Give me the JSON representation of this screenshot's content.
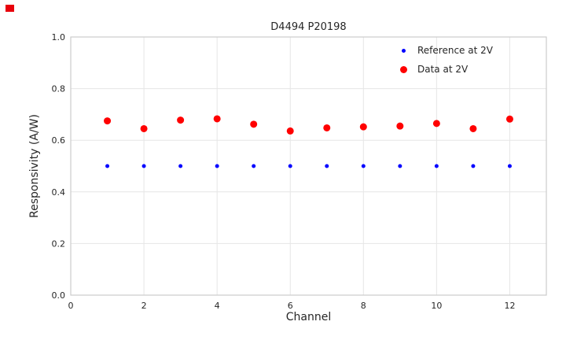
{
  "corner_marker_color": "#e8000b",
  "chart_data": {
    "type": "scatter",
    "title": "D4494 P20198",
    "xlabel": "Channel",
    "ylabel": "Responsivity (A/W)",
    "xlim": [
      0,
      13
    ],
    "ylim": [
      0,
      1
    ],
    "grid": true,
    "grid_color": "#e6e6e6",
    "border_color": "#cccccc",
    "legend_position": "upper-right",
    "xticks": {
      "values": [
        0,
        2,
        4,
        6,
        8,
        10,
        12
      ],
      "labels": [
        "0",
        "2",
        "4",
        "6",
        "8",
        "10",
        "12"
      ]
    },
    "yticks": {
      "values": [
        0,
        0.2,
        0.4,
        0.6,
        0.8,
        1.0
      ],
      "labels": [
        "0.0",
        "0.2",
        "0.4",
        "0.6",
        "0.8",
        "1.0"
      ]
    },
    "x": [
      1,
      2,
      3,
      4,
      5,
      6,
      7,
      8,
      9,
      10,
      11,
      12
    ],
    "series": [
      {
        "name": "Reference at 2V",
        "color": "#0000ff",
        "marker_size": 2.5,
        "legend_marker_px": 5,
        "values": [
          0.5,
          0.5,
          0.5,
          0.5,
          0.5,
          0.5,
          0.5,
          0.5,
          0.5,
          0.5,
          0.5,
          0.5
        ]
      },
      {
        "name": "Data at 2V",
        "color": "#ff0000",
        "marker_size": 4.5,
        "legend_marker_px": 9,
        "values": [
          0.675,
          0.645,
          0.678,
          0.683,
          0.662,
          0.636,
          0.648,
          0.652,
          0.655,
          0.665,
          0.645,
          0.682
        ]
      }
    ]
  }
}
